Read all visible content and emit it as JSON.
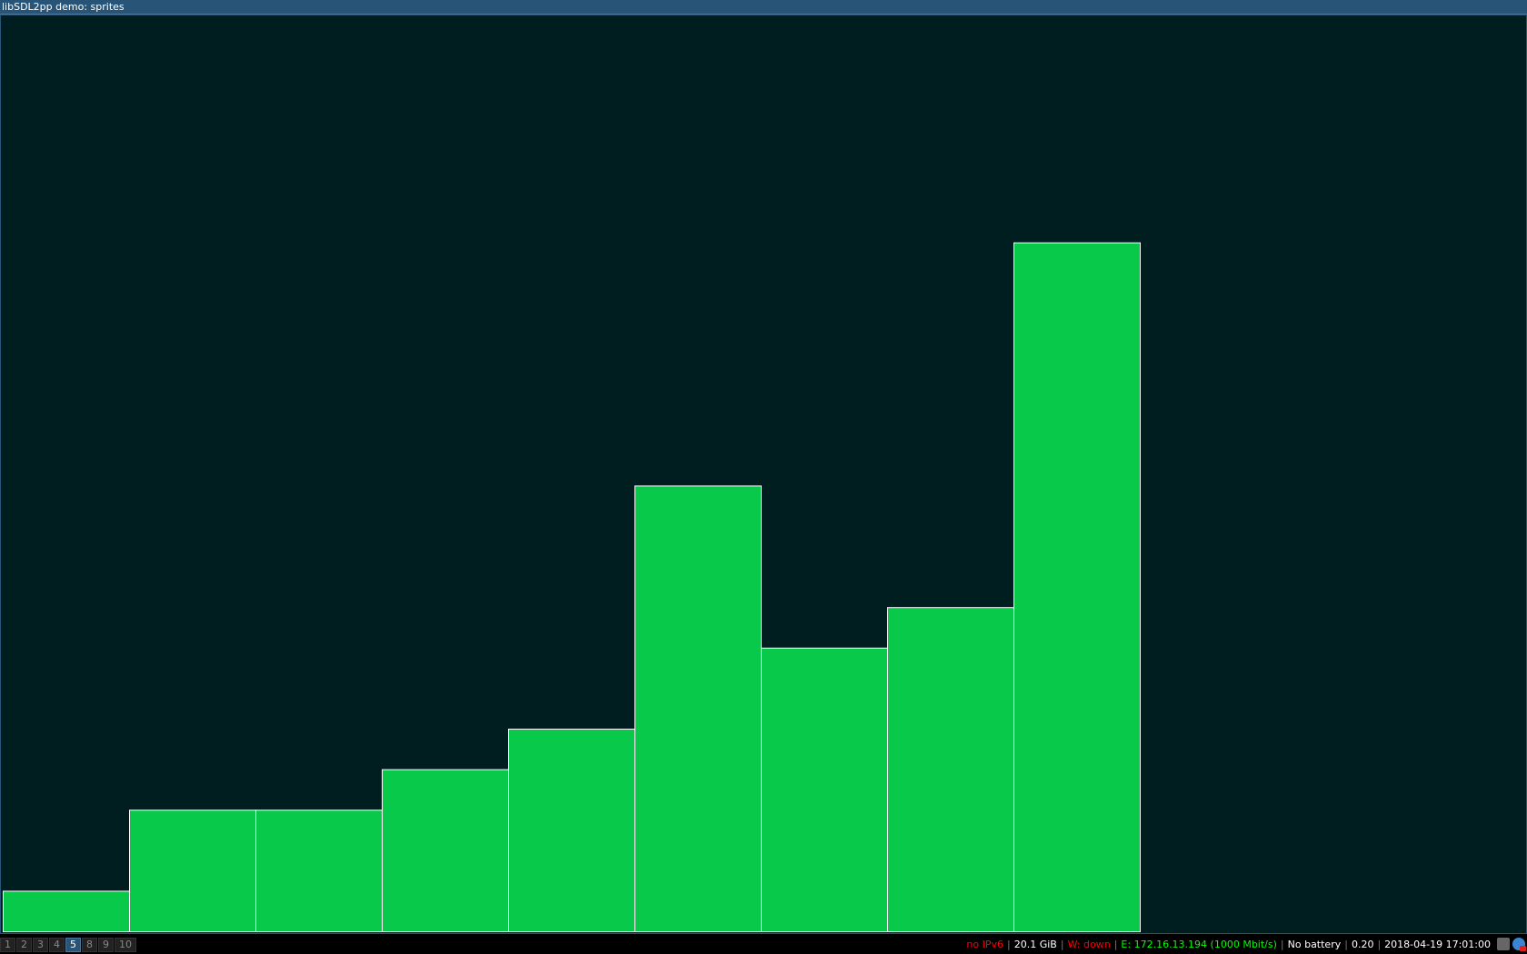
{
  "window": {
    "title": "libSDL2pp demo: sprites"
  },
  "colors": {
    "bar_fill": "#08c94a",
    "bar_stroke": "#ffffff",
    "canvas_bg": "#001e20",
    "red": "#ff0000",
    "green": "#00ff00",
    "white": "#ffffff"
  },
  "bars": {
    "heights": [
      1,
      3,
      3,
      4,
      5,
      11,
      7,
      8,
      17
    ],
    "max_units": 23
  },
  "workspaces": [
    {
      "label": "1",
      "active": false
    },
    {
      "label": "2",
      "active": false
    },
    {
      "label": "3",
      "active": false
    },
    {
      "label": "4",
      "active": false
    },
    {
      "label": "5",
      "active": true
    },
    {
      "label": "8",
      "active": false
    },
    {
      "label": "9",
      "active": false
    },
    {
      "label": "10",
      "active": false
    }
  ],
  "status": {
    "ipv6": "no IPv6",
    "disk": "20.1 GiB",
    "wifi": "W: down",
    "ethernet": "E: 172.16.13.194 (1000 Mbit/s)",
    "battery": "No battery",
    "load": "0.20",
    "datetime": "2018-04-19 17:01:00"
  },
  "tray": [
    "robot-icon",
    "network-icon"
  ]
}
